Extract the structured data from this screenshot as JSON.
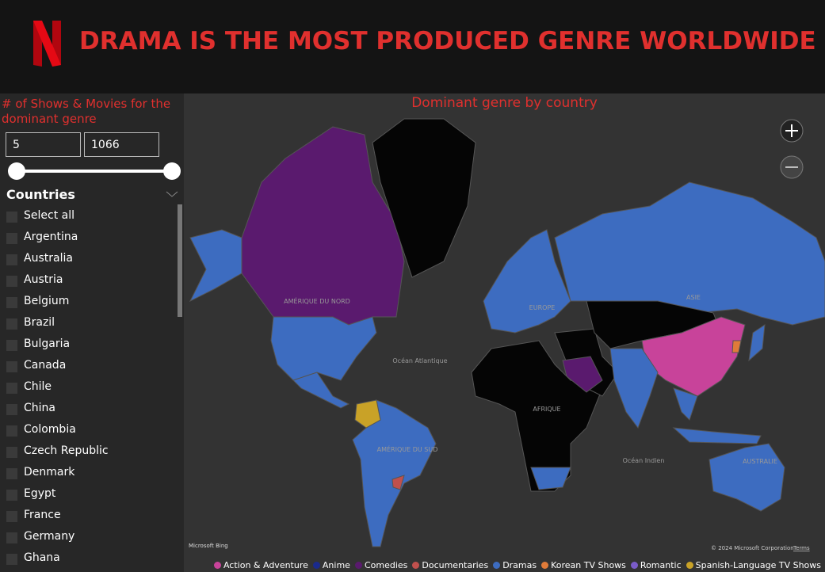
{
  "header": {
    "title": "DRAMA IS THE MOST PRODUCED GENRE WORLDWIDE"
  },
  "slicer": {
    "title": "# of Shows & Movies for the dominant genre",
    "min": "5",
    "max": "1066"
  },
  "countries": {
    "title": "Countries",
    "items": [
      "Select all",
      "Argentina",
      "Australia",
      "Austria",
      "Belgium",
      "Brazil",
      "Bulgaria",
      "Canada",
      "Chile",
      "China",
      "Colombia",
      "Czech Republic",
      "Denmark",
      "Egypt",
      "France",
      "Germany",
      "Ghana"
    ]
  },
  "map": {
    "title": "Dominant genre by country",
    "labels": [
      "AMÉRIQUE DU NORD",
      "Océan Atlantique",
      "AMÉRIQUE DU SUD",
      "AFRIQUE",
      "EUROPE",
      "ASIE",
      "Océan Indien",
      "AUSTRALIE"
    ],
    "attribution": "Microsoft Bing",
    "copyright": "© 2024 Microsoft Corporation",
    "terms": "Terms"
  },
  "legend": [
    {
      "name": "Action & Adventure",
      "color": "#c8439a"
    },
    {
      "name": "Anime",
      "color": "#1a2a8c"
    },
    {
      "name": "Comedies",
      "color": "#5a1a6e"
    },
    {
      "name": "Documentaries",
      "color": "#c0504d"
    },
    {
      "name": "Dramas",
      "color": "#3d6cc0"
    },
    {
      "name": "Korean TV Shows",
      "color": "#e07b39"
    },
    {
      "name": "Romantic",
      "color": "#7a5cc8"
    },
    {
      "name": "Spanish-Language TV Shows",
      "color": "#c9a227"
    }
  ]
}
